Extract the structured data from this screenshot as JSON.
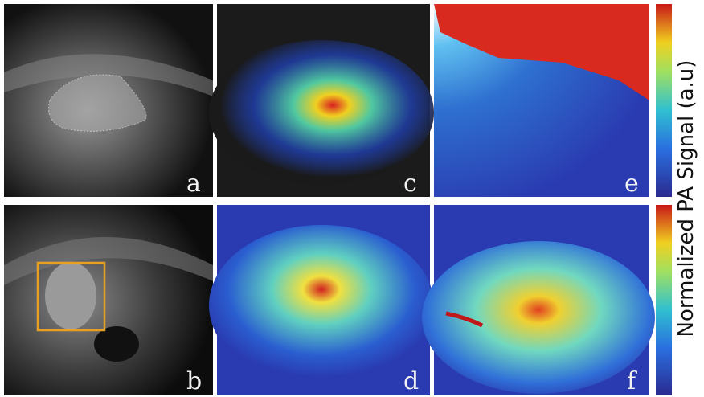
{
  "panels": [
    {
      "label": "a"
    },
    {
      "label": "b"
    },
    {
      "label": "c"
    },
    {
      "label": "d"
    },
    {
      "label": "e"
    },
    {
      "label": "f"
    }
  ],
  "colorbar": {
    "title": "Normalized PA Signal (a.u)"
  }
}
